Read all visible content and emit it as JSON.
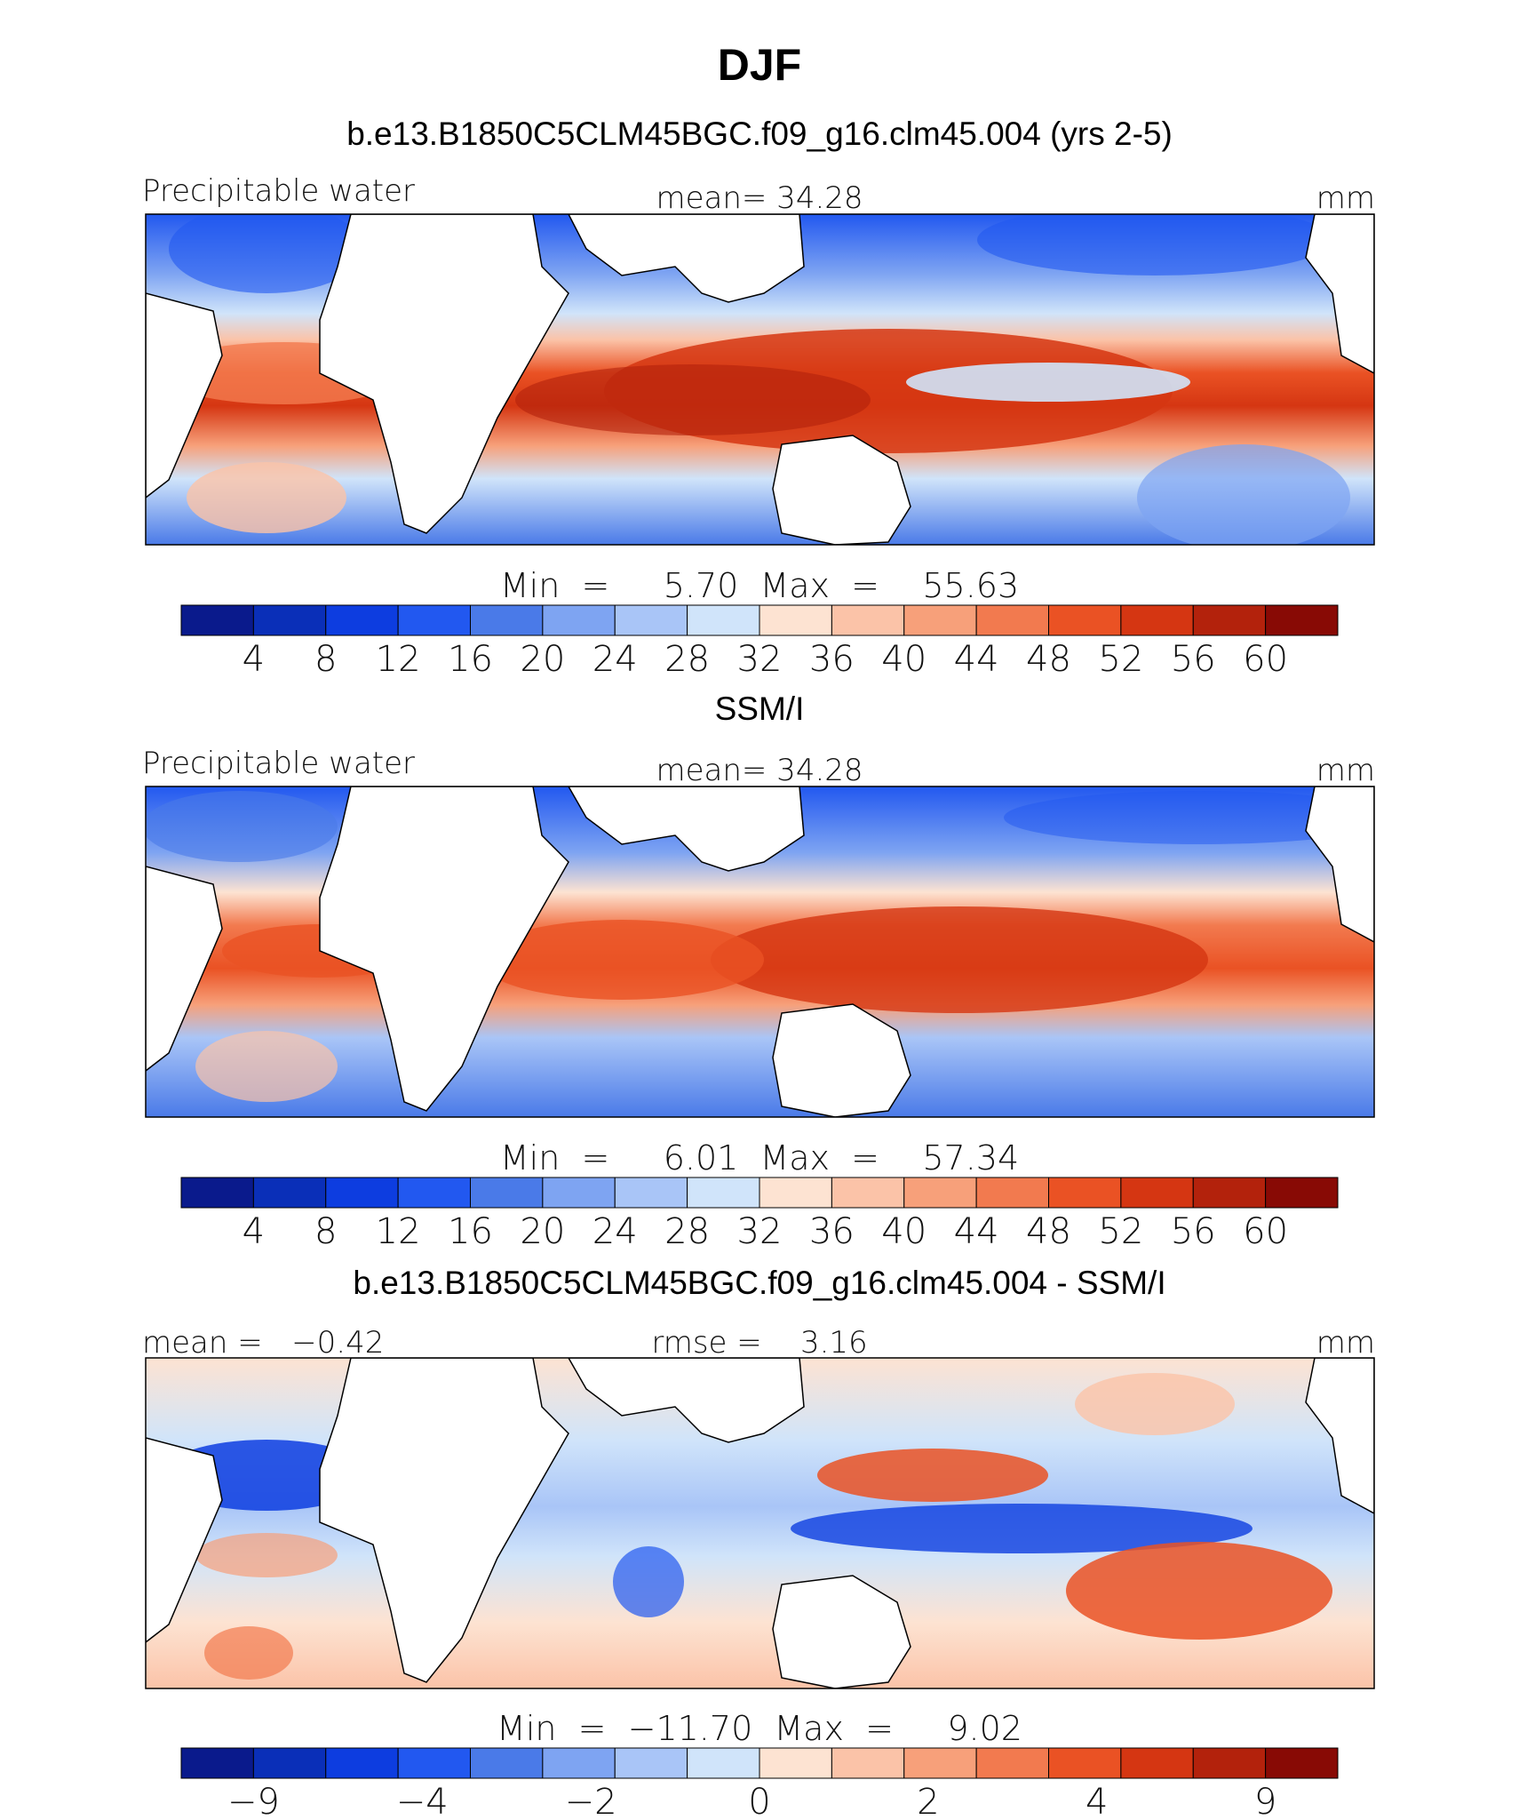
{
  "page": {
    "title": "DJF"
  },
  "colors": {
    "positive": "#d94020",
    "negative": "#2c5fe6",
    "land": "#ffffff",
    "outline": "#000000"
  },
  "chart_data": [
    {
      "type": "heatmap",
      "title": "b.e13.B1850C5CLM45BGC.f09_g16.clm45.004 (yrs 2-5)",
      "left_label": "Precipitable water",
      "center_label": "mean=   34.28",
      "units": "mm",
      "minmax_label": "Min  =     5.70  Max  =    55.63",
      "mean": 34.28,
      "min": 5.7,
      "max": 55.63,
      "colorbar": {
        "colors": [
          "#0a1a8c",
          "#0a2fb8",
          "#0d3de0",
          "#2258f0",
          "#4a7ae8",
          "#7ea4f2",
          "#a9c5f7",
          "#d0e4fa",
          "#fde3d2",
          "#fbc3a8",
          "#f7a07a",
          "#f27a4f",
          "#ea5224",
          "#d53612",
          "#b3220c",
          "#880a05"
        ],
        "ticks": [
          "4",
          "8",
          "12",
          "16",
          "20",
          "24",
          "28",
          "32",
          "36",
          "40",
          "44",
          "48",
          "52",
          "56",
          "60"
        ]
      }
    },
    {
      "type": "heatmap",
      "title": "SSM/I",
      "left_label": "Precipitable water",
      "center_label": "mean=   34.28",
      "units": "mm",
      "minmax_label": "Min  =     6.01  Max  =    57.34",
      "mean": 34.28,
      "min": 6.01,
      "max": 57.34,
      "colorbar": {
        "colors": [
          "#0a1a8c",
          "#0a2fb8",
          "#0d3de0",
          "#2258f0",
          "#4a7ae8",
          "#7ea4f2",
          "#a9c5f7",
          "#d0e4fa",
          "#fde3d2",
          "#fbc3a8",
          "#f7a07a",
          "#f27a4f",
          "#ea5224",
          "#d53612",
          "#b3220c",
          "#880a05"
        ],
        "ticks": [
          "4",
          "8",
          "12",
          "16",
          "20",
          "24",
          "28",
          "32",
          "36",
          "40",
          "44",
          "48",
          "52",
          "56",
          "60"
        ]
      }
    },
    {
      "type": "heatmap",
      "title": "b.e13.B1850C5CLM45BGC.f09_g16.clm45.004 - SSM/I",
      "left_label": "mean =   −0.42",
      "center_label": "rmse =    3.16",
      "units": "mm",
      "minmax_label": "Min  =  −11.70  Max  =     9.02",
      "mean": -0.42,
      "rmse": 3.16,
      "min": -11.7,
      "max": 9.02,
      "colorbar": {
        "colors": [
          "#0a1a8c",
          "#0a2fb8",
          "#0d3de0",
          "#2258f0",
          "#4a7ae8",
          "#7ea4f2",
          "#a9c5f7",
          "#d0e4fa",
          "#fde3d2",
          "#fbc3a8",
          "#f7a07a",
          "#f27a4f",
          "#ea5224",
          "#d53612",
          "#b3220c",
          "#880a05"
        ],
        "ticks": [
          "−9",
          "",
          "−4",
          "",
          "−2",
          "",
          "0",
          "",
          "2",
          "",
          "4",
          "",
          "9"
        ]
      }
    }
  ]
}
